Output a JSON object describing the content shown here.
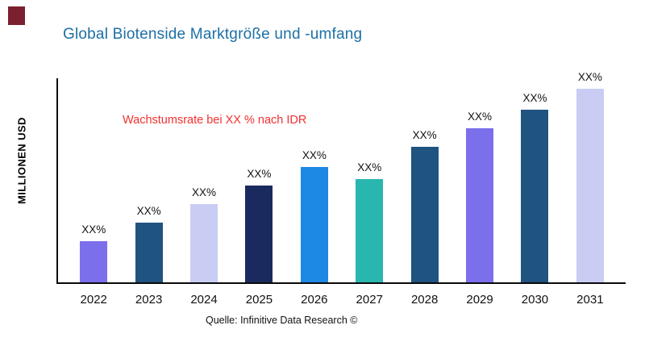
{
  "brand": {
    "mark_color": "#7C202F"
  },
  "header": {
    "title": "Global Biotenside Marktgröße und -umfang",
    "title_color": "#1D6FA5"
  },
  "annotation": {
    "text": "Wachstumsrate bei XX % nach IDR",
    "color": "#F23030"
  },
  "footer": {
    "source": "Quelle: Infinitive Data Research ©"
  },
  "chart_data": {
    "type": "bar",
    "title": "Global Biotenside Marktgröße und -umfang",
    "xlabel": "",
    "ylabel": "MILLIONEN USD",
    "ylim": [
      0,
      100
    ],
    "grid": false,
    "legend": false,
    "categories": [
      "2022",
      "2023",
      "2024",
      "2025",
      "2026",
      "2027",
      "2028",
      "2029",
      "2030",
      "2031"
    ],
    "values": [
      20,
      29,
      38,
      47,
      56,
      50,
      66,
      75,
      84,
      94
    ],
    "bar_labels": [
      "XX%",
      "XX%",
      "XX%",
      "XX%",
      "XX%",
      "XX%",
      "XX%",
      "XX%",
      "XX%",
      "XX%"
    ],
    "bar_colors": [
      "#7C6FEB",
      "#1F5380",
      "#C9CDF3",
      "#1B2A5E",
      "#1E88E5",
      "#29B6AF",
      "#1F5380",
      "#7C6FEB",
      "#1F5380",
      "#C9CDF3"
    ],
    "annotation": "Wachstumsrate bei XX % nach IDR",
    "source": "Quelle: Infinitive Data Research ©"
  }
}
